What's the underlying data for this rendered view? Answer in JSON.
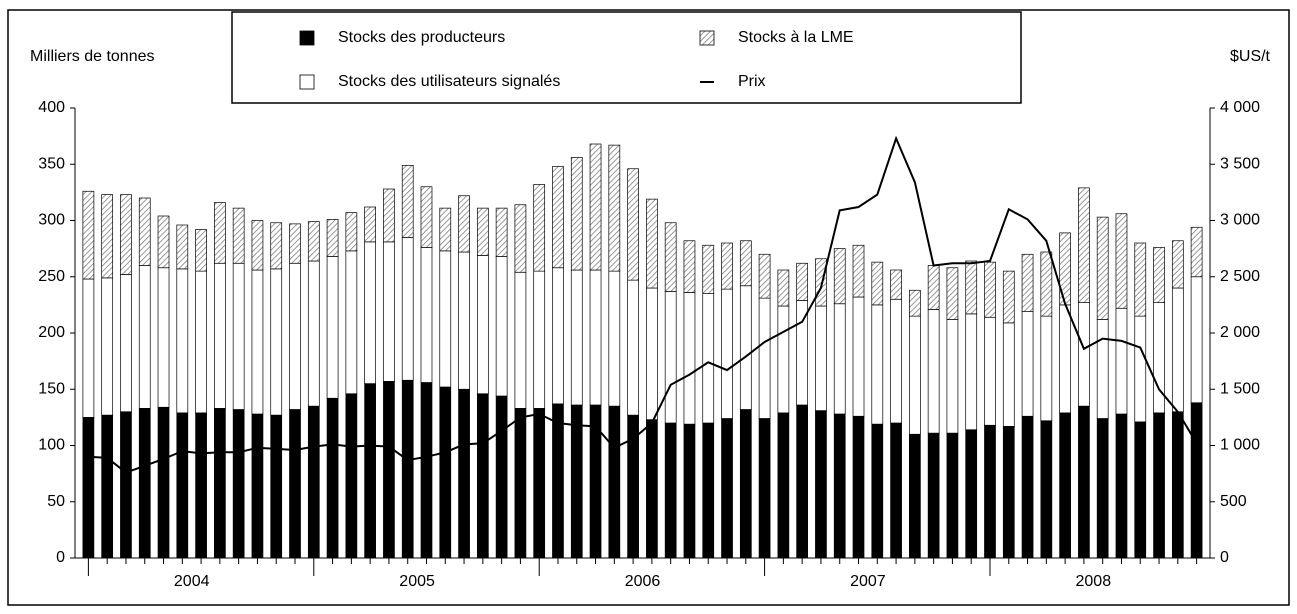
{
  "chart_data": {
    "type": "bar",
    "y_label": "Milliers de tonnes",
    "y2_label": "$US/t",
    "categories": [
      null,
      null,
      null,
      null,
      null,
      null,
      null,
      null,
      null,
      null,
      null,
      null,
      null,
      null,
      null,
      null,
      null,
      null,
      null,
      null,
      null,
      null,
      null,
      null,
      null,
      null,
      null,
      null,
      null,
      null,
      null,
      null,
      null,
      null,
      null,
      null,
      null,
      null,
      null,
      null,
      null,
      null,
      null,
      null,
      null,
      null,
      null,
      null,
      null,
      null,
      null,
      null,
      null,
      null,
      null,
      null,
      null,
      null,
      null,
      null
    ],
    "groups": [
      "2004",
      "2005",
      "2006",
      "2007",
      "2008"
    ],
    "series": [
      {
        "name": "Stocks des producteurs",
        "type": "bar",
        "color": "#000000",
        "values": [
          125,
          127,
          130,
          133,
          134,
          129,
          129,
          133,
          132,
          128,
          127,
          132,
          135,
          142,
          146,
          155,
          157,
          158,
          156,
          152,
          150,
          146,
          144,
          133,
          133,
          137,
          136,
          136,
          135,
          127,
          123,
          120,
          119,
          120,
          124,
          132,
          124,
          129,
          136,
          131,
          128,
          126,
          119,
          120,
          110,
          111,
          111,
          114,
          118,
          117,
          126,
          122,
          129,
          135,
          124,
          128,
          121,
          129,
          130,
          138
        ]
      },
      {
        "name": "Stocks des utilisateurs signalés",
        "type": "bar",
        "color": "#ffffff",
        "values": [
          123,
          122,
          122,
          127,
          124,
          128,
          126,
          129,
          130,
          128,
          130,
          130,
          129,
          126,
          127,
          126,
          124,
          127,
          120,
          121,
          122,
          123,
          124,
          121,
          122,
          121,
          120,
          120,
          120,
          120,
          117,
          117,
          117,
          115,
          115,
          110,
          107,
          95,
          93,
          93,
          98,
          106,
          106,
          110,
          105,
          110,
          101,
          103,
          96,
          92,
          93,
          93,
          96,
          92,
          88,
          94,
          94,
          98,
          110,
          112
        ]
      },
      {
        "name": "Stocks à la LME",
        "type": "bar",
        "color": "#808080",
        "values": [
          78,
          74,
          71,
          60,
          46,
          39,
          37,
          54,
          49,
          44,
          41,
          35,
          35,
          33,
          34,
          31,
          47,
          64,
          54,
          38,
          50,
          42,
          43,
          60,
          77,
          90,
          100,
          112,
          112,
          99,
          79,
          61,
          46,
          43,
          41,
          40,
          39,
          32,
          33,
          42,
          49,
          46,
          38,
          26,
          23,
          39,
          46,
          47,
          49,
          46,
          51,
          57,
          64,
          102,
          91,
          84,
          65,
          49,
          42,
          44
        ]
      },
      {
        "name": "Prix",
        "type": "line",
        "axis": "y2",
        "color": "#000000",
        "values": [
          900,
          890,
          760,
          820,
          880,
          950,
          930,
          940,
          940,
          980,
          970,
          960,
          990,
          1010,
          990,
          1000,
          990,
          870,
          900,
          940,
          1010,
          1020,
          1130,
          1250,
          1280,
          1200,
          1180,
          1170,
          980,
          1060,
          1200,
          1540,
          1630,
          1740,
          1670,
          1790,
          1920,
          2010,
          2100,
          2400,
          3090,
          3120,
          3230,
          3730,
          3340,
          2600,
          2620,
          2620,
          2640,
          3100,
          3010,
          2820,
          2260,
          1860,
          1950,
          1930,
          1870,
          1500,
          1300,
          1020
        ]
      }
    ],
    "ylim": [
      0,
      400
    ],
    "yticks": [
      0,
      50,
      100,
      150,
      200,
      250,
      300,
      350,
      400
    ],
    "y2lim": [
      0,
      4000
    ],
    "y2ticks": [
      0,
      500,
      {
        "value": 1000,
        "label": "1 000"
      },
      {
        "value": 1500,
        "label": "1 500"
      },
      {
        "value": 2000,
        "label": "2 000"
      },
      {
        "value": 2500,
        "label": "2 500"
      },
      {
        "value": 3000,
        "label": "3 000"
      },
      {
        "value": 3500,
        "label": "3 500"
      },
      {
        "value": 4000,
        "label": "4 000"
      }
    ]
  }
}
